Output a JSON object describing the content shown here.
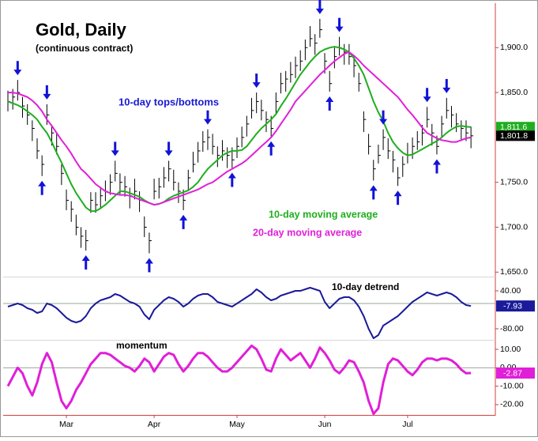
{
  "chart_data": [
    {
      "type": "ohlc",
      "title": "Gold, Daily",
      "subtitle": "(continuous contract)",
      "annotation": "10-day tops/bottoms",
      "categories": [
        null,
        null,
        null,
        null,
        null,
        null,
        null,
        null,
        null,
        null,
        null,
        null,
        "Mar",
        null,
        null,
        null,
        null,
        null,
        null,
        null,
        null,
        null,
        null,
        null,
        null,
        null,
        null,
        null,
        null,
        null,
        "Apr",
        null,
        null,
        null,
        null,
        null,
        null,
        null,
        null,
        null,
        null,
        null,
        null,
        null,
        null,
        null,
        null,
        "May",
        null,
        null,
        null,
        null,
        null,
        null,
        null,
        null,
        null,
        null,
        null,
        null,
        null,
        null,
        null,
        null,
        null,
        "Jun",
        null,
        null,
        null,
        null,
        null,
        null,
        null,
        null,
        null,
        null,
        null,
        null,
        null,
        null,
        null,
        null,
        "Jul",
        null,
        null,
        null,
        null,
        null,
        null,
        null,
        null,
        null,
        null,
        null,
        null,
        null
      ],
      "high": [
        1852,
        1854,
        1864,
        1845,
        1837,
        1819,
        1799,
        1780,
        1837,
        1814,
        1804,
        1770,
        1742,
        1729,
        1714,
        1700,
        1697,
        1739,
        1739,
        1745,
        1752,
        1759,
        1774,
        1760,
        1757,
        1744,
        1754,
        1740,
        1712,
        1694,
        1754,
        1755,
        1767,
        1774,
        1764,
        1750,
        1742,
        1764,
        1784,
        1795,
        1807,
        1809,
        1804,
        1790,
        1797,
        1789,
        1789,
        1800,
        1812,
        1824,
        1844,
        1850,
        1842,
        1829,
        1824,
        1850,
        1872,
        1874,
        1884,
        1890,
        1897,
        1909,
        1924,
        1915,
        1932,
        1894,
        1874,
        1900,
        1912,
        1904,
        1904,
        1890,
        1872,
        1829,
        1804,
        1775,
        1792,
        1809,
        1799,
        1785,
        1767,
        1779,
        1794,
        1800,
        1807,
        1814,
        1834,
        1815,
        1802,
        1824,
        1844,
        1835,
        1827,
        1819,
        1819,
        1812
      ],
      "low": [
        1829,
        1831,
        1841,
        1822,
        1814,
        1796,
        1776,
        1757,
        1814,
        1791,
        1781,
        1747,
        1719,
        1706,
        1691,
        1677,
        1674,
        1716,
        1716,
        1722,
        1729,
        1736,
        1751,
        1737,
        1734,
        1721,
        1731,
        1717,
        1689,
        1671,
        1731,
        1732,
        1744,
        1751,
        1741,
        1727,
        1719,
        1741,
        1761,
        1772,
        1784,
        1786,
        1781,
        1767,
        1774,
        1766,
        1766,
        1777,
        1789,
        1801,
        1821,
        1827,
        1819,
        1806,
        1801,
        1827,
        1849,
        1851,
        1861,
        1866,
        1874,
        1886,
        1901,
        1892,
        1911,
        1871,
        1851,
        1877,
        1891,
        1881,
        1881,
        1867,
        1851,
        1806,
        1781,
        1752,
        1771,
        1786,
        1776,
        1761,
        1746,
        1756,
        1771,
        1776,
        1786,
        1791,
        1811,
        1791,
        1781,
        1801,
        1821,
        1811,
        1806,
        1796,
        1796,
        1788
      ],
      "close": [
        1840,
        1845,
        1850,
        1835,
        1825,
        1810,
        1785,
        1770,
        1825,
        1805,
        1790,
        1760,
        1730,
        1720,
        1700,
        1690,
        1685,
        1730,
        1725,
        1735,
        1740,
        1750,
        1760,
        1750,
        1745,
        1735,
        1740,
        1730,
        1700,
        1685,
        1740,
        1745,
        1755,
        1765,
        1750,
        1740,
        1730,
        1755,
        1770,
        1785,
        1795,
        1800,
        1790,
        1780,
        1785,
        1780,
        1775,
        1790,
        1800,
        1815,
        1830,
        1840,
        1830,
        1820,
        1810,
        1840,
        1860,
        1865,
        1870,
        1880,
        1885,
        1900,
        1910,
        1905,
        1920,
        1885,
        1860,
        1890,
        1900,
        1895,
        1890,
        1880,
        1860,
        1820,
        1790,
        1765,
        1780,
        1800,
        1785,
        1775,
        1755,
        1770,
        1780,
        1790,
        1795,
        1805,
        1820,
        1805,
        1790,
        1815,
        1830,
        1825,
        1815,
        1810,
        1805,
        1801.8
      ],
      "bar_color": "#000000",
      "series": [
        {
          "name": "10-day moving average",
          "color": "#1fae1f",
          "values": [
            1840,
            1838,
            1836,
            1833,
            1829,
            1825,
            1820,
            1812,
            1805,
            1795,
            1783,
            1772,
            1760,
            1748,
            1738,
            1730,
            1722,
            1718,
            1718,
            1721,
            1725,
            1730,
            1735,
            1740,
            1740,
            1738,
            1736,
            1734,
            1730,
            1727,
            1725,
            1726,
            1728,
            1732,
            1735,
            1737,
            1739,
            1741,
            1745,
            1750,
            1758,
            1765,
            1770,
            1775,
            1780,
            1783,
            1785,
            1785,
            1786,
            1790,
            1797,
            1804,
            1810,
            1815,
            1820,
            1826,
            1835,
            1843,
            1852,
            1861,
            1870,
            1877,
            1884,
            1890,
            1895,
            1898,
            1900,
            1901,
            1900,
            1898,
            1895,
            1888,
            1880,
            1870,
            1855,
            1840,
            1828,
            1818,
            1805,
            1795,
            1788,
            1783,
            1780,
            1781,
            1784,
            1787,
            1790,
            1793,
            1796,
            1800,
            1805,
            1809,
            1812,
            1813,
            1812,
            1811.6
          ]
        },
        {
          "name": "20-day moving average",
          "color": "#e01fd8",
          "values": [
            1850,
            1850,
            1849,
            1847,
            1845,
            1841,
            1836,
            1829,
            1820,
            1813,
            1805,
            1797,
            1790,
            1782,
            1773,
            1765,
            1760,
            1754,
            1748,
            1744,
            1740,
            1738,
            1737,
            1736,
            1736,
            1735,
            1733,
            1731,
            1729,
            1727,
            1725,
            1726,
            1728,
            1730,
            1732,
            1734,
            1736,
            1738,
            1740,
            1742,
            1745,
            1748,
            1750,
            1754,
            1758,
            1762,
            1765,
            1768,
            1771,
            1775,
            1780,
            1785,
            1790,
            1795,
            1800,
            1807,
            1815,
            1823,
            1831,
            1840,
            1846,
            1852,
            1858,
            1864,
            1870,
            1875,
            1880,
            1885,
            1889,
            1893,
            1895,
            1891,
            1886,
            1880,
            1875,
            1870,
            1865,
            1860,
            1855,
            1850,
            1845,
            1838,
            1831,
            1825,
            1818,
            1811,
            1805,
            1802,
            1799,
            1797,
            1796,
            1795,
            1795,
            1797,
            1799,
            1800
          ]
        }
      ],
      "price_tags": [
        {
          "value": 1811.6,
          "label": "1,811.6",
          "color": "#1fae1f"
        },
        {
          "value": 1801.8,
          "label": "1,801.8",
          "color": "#000000"
        }
      ],
      "ylim": [
        1645,
        1946
      ],
      "yticks": [
        {
          "value": 1650,
          "label": "1,650.0"
        },
        {
          "value": 1700,
          "label": "1,700.0"
        },
        {
          "value": 1750,
          "label": "1,750.0"
        },
        {
          "value": 1850,
          "label": "1,850.0"
        },
        {
          "value": 1900,
          "label": "1,900.0"
        }
      ]
    },
    {
      "type": "line",
      "title": "10-day detrend",
      "zero_line": true,
      "series": [
        {
          "name": "detrend",
          "color": "#1a1a9a",
          "values": [
            -10,
            -5,
            0,
            -5,
            -15,
            -20,
            -30,
            -25,
            0,
            -5,
            -15,
            -30,
            -45,
            -55,
            -60,
            -55,
            -40,
            -15,
            0,
            10,
            15,
            20,
            30,
            25,
            15,
            5,
            0,
            -10,
            -35,
            -50,
            -20,
            -5,
            10,
            20,
            15,
            5,
            -10,
            0,
            15,
            25,
            30,
            30,
            20,
            5,
            0,
            -5,
            -10,
            0,
            10,
            20,
            30,
            45,
            35,
            20,
            10,
            15,
            25,
            30,
            35,
            40,
            40,
            45,
            50,
            45,
            40,
            5,
            -15,
            0,
            15,
            20,
            20,
            10,
            -10,
            -40,
            -80,
            -110,
            -100,
            -70,
            -60,
            -50,
            -40,
            -25,
            -10,
            5,
            15,
            25,
            35,
            30,
            25,
            30,
            35,
            30,
            20,
            5,
            -5,
            -7.93
          ]
        }
      ],
      "ylim": [
        -115,
        80
      ],
      "yticks": [
        {
          "value": 40,
          "label": "40.00"
        },
        {
          "value": -80,
          "label": "-80.00"
        }
      ]
    },
    {
      "type": "line",
      "title": "momentum",
      "zero_line": true,
      "line_width": 3,
      "series": [
        {
          "name": "momentum",
          "color": "#e01fd8",
          "values": [
            -10,
            -5,
            0,
            -3,
            -10,
            -15,
            -8,
            2,
            8,
            3,
            -8,
            -18,
            -22,
            -18,
            -12,
            -8,
            -3,
            2,
            5,
            8,
            8,
            7,
            5,
            3,
            1,
            0,
            -2,
            1,
            5,
            3,
            -2,
            2,
            6,
            8,
            7,
            2,
            -2,
            1,
            5,
            8,
            8,
            6,
            3,
            0,
            -2,
            -2,
            0,
            3,
            6,
            9,
            12,
            10,
            5,
            -1,
            -2,
            5,
            10,
            7,
            4,
            6,
            8,
            4,
            0,
            5,
            11,
            8,
            4,
            -1,
            -3,
            0,
            4,
            3,
            -2,
            -8,
            -18,
            -25,
            -22,
            -8,
            2,
            5,
            4,
            1,
            -2,
            -4,
            -1,
            3,
            5,
            5,
            4,
            5,
            5,
            4,
            2,
            -1,
            -3,
            -2.87
          ]
        }
      ],
      "ylim": [
        -25.6,
        14.3
      ],
      "yticks": [
        {
          "value": 10,
          "label": "10.00"
        },
        {
          "value": 0,
          "label": "0.00"
        },
        {
          "value": -10,
          "label": "-10.00"
        },
        {
          "value": -20,
          "label": "-20.00"
        }
      ]
    }
  ]
}
